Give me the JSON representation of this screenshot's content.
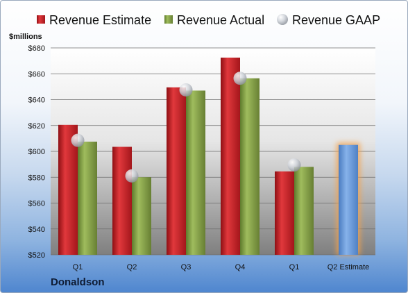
{
  "company": "Donaldson",
  "chart_data": {
    "type": "bar",
    "ylabel": "$millions",
    "ylim": [
      520,
      680
    ],
    "yticks": [
      520,
      540,
      560,
      580,
      600,
      620,
      640,
      660,
      680
    ],
    "ytick_labels": [
      "$520",
      "$540",
      "$560",
      "$580",
      "$600",
      "$620",
      "$640",
      "$660",
      "$680"
    ],
    "categories": [
      "Q1",
      "Q2",
      "Q3",
      "Q4",
      "Q1",
      "Q2 Estimate"
    ],
    "grid": true,
    "legend_position": "top",
    "series": [
      {
        "name": "Revenue Estimate",
        "kind": "bar",
        "color": "#d0262b",
        "values": [
          620.5,
          603.5,
          649.5,
          672.5,
          584.5,
          null
        ]
      },
      {
        "name": "Revenue Actual",
        "kind": "bar",
        "color": "#8aa84b",
        "values": [
          607.5,
          580,
          647,
          656.5,
          588,
          null
        ]
      },
      {
        "name": "Revenue GAAP",
        "kind": "marker",
        "color": "#b8bcc4",
        "values": [
          608.5,
          581,
          647.5,
          656.5,
          589.5,
          null
        ]
      }
    ],
    "highlight": {
      "category": "Q2 Estimate",
      "value": 605,
      "color": "#6f9fdc",
      "glow": "#f6a24a"
    }
  }
}
